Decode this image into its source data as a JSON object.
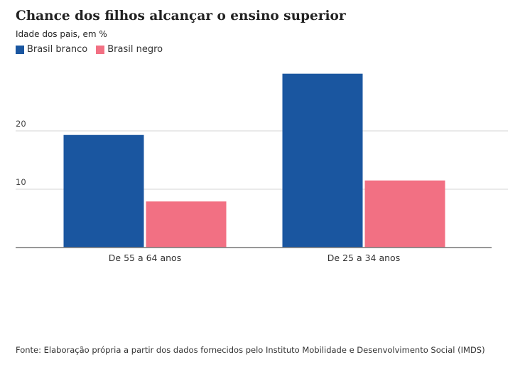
{
  "chart_data": {
    "type": "bar",
    "title": "Chance dos filhos alcançar o ensino superior",
    "subtitle": "Idade dos pais, em %",
    "categories": [
      "De 55 a 64 anos",
      "De 25 a 34 anos"
    ],
    "series": [
      {
        "name": "Brasil branco",
        "color": "#1a56a0",
        "values": [
          19.3,
          29.8
        ]
      },
      {
        "name": "Brasil negro",
        "color": "#f27083",
        "values": [
          7.9,
          11.5
        ]
      }
    ],
    "yticks": [
      10,
      20
    ],
    "ylim": [
      0,
      32
    ],
    "grid": true,
    "legend_position": "top-left",
    "source": "Fonte: Elaboração própria a partir dos dados fornecidos pelo Instituto Mobilidade e Desenvolvimento Social (IMDS)"
  }
}
